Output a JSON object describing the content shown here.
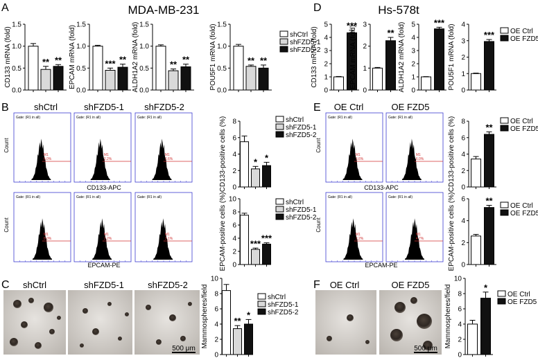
{
  "panels": {
    "A": {
      "letter": "A",
      "title": "MDA-MB-231"
    },
    "B": {
      "letter": "B"
    },
    "C": {
      "letter": "C"
    },
    "D": {
      "letter": "D",
      "title": "Hs-578t"
    },
    "E": {
      "letter": "E"
    },
    "F": {
      "letter": "F"
    }
  },
  "colors": {
    "ctrl": "#ffffff",
    "sh1": "#d9d9d9",
    "sh2": "#111111",
    "oe": "#111111",
    "flow_frame": "#3a3ad0",
    "flow_gate": "#d03030"
  },
  "flow": {
    "gate_text": "Gate: (R1 in all)",
    "y_label": "Count",
    "marker": "M1",
    "B_headers": [
      "shCtrl",
      "shFZD5-1",
      "shFZD5-2"
    ],
    "E_headers": [
      "OE Ctrl",
      "OE FZD5"
    ],
    "B_top_xlabel": "CD133-APC",
    "B_bottom_xlabel": "EPCAM-PE",
    "E_top_xlabel": "CD133-APC",
    "E_bottom_xlabel": "EPCAM-PE",
    "B_top_pct": [
      "6.0%",
      "2.2%",
      "2.6%"
    ],
    "B_bottom_pct": [
      "8.0%",
      "2.2%",
      "3.1%"
    ],
    "E_top_pct": [
      "3.6%",
      "6.0%"
    ],
    "E_bottom_pct": [
      "2.2%",
      "4.7%"
    ]
  },
  "images": {
    "C_headers": [
      "shCtrl",
      "shFZD5-1",
      "shFZD5-2"
    ],
    "F_headers": [
      "OE Ctrl",
      "OE FZD5"
    ],
    "scale_bar": "500 μm"
  },
  "chart_data": [
    {
      "id": "A1",
      "type": "bar",
      "ylabel": "CD133 mRNA (fold)",
      "ylim": [
        0,
        1.5
      ],
      "yticks": [
        "0.0",
        "0.5",
        "1.0",
        "1.5"
      ],
      "values": [
        1.0,
        0.47,
        0.54
      ],
      "errors": [
        0.06,
        0.07,
        0.04
      ],
      "sig": [
        "",
        "**",
        "**"
      ],
      "colors": [
        "ctrl",
        "sh1",
        "sh2"
      ]
    },
    {
      "id": "A2",
      "type": "bar",
      "ylabel": "EPCAM mRNA (fold)",
      "ylim": [
        0,
        1.5
      ],
      "yticks": [
        "0.0",
        "0.5",
        "1.0",
        "1.5"
      ],
      "values": [
        1.0,
        0.45,
        0.52
      ],
      "errors": [
        0.02,
        0.05,
        0.07
      ],
      "sig": [
        "",
        "***",
        "**"
      ],
      "colors": [
        "ctrl",
        "sh1",
        "sh2"
      ]
    },
    {
      "id": "A3",
      "type": "bar",
      "ylabel": "ALDH1A2 mRNA (fold)",
      "ylim": [
        0,
        1.5
      ],
      "yticks": [
        "0.0",
        "0.5",
        "1.0",
        "1.5"
      ],
      "values": [
        1.0,
        0.44,
        0.53
      ],
      "errors": [
        0.03,
        0.04,
        0.06
      ],
      "sig": [
        "",
        "**",
        "**"
      ],
      "colors": [
        "ctrl",
        "sh1",
        "sh2"
      ]
    },
    {
      "id": "A4",
      "type": "bar",
      "ylabel": "POU5F1 mRNA (fold)",
      "ylim": [
        0,
        1.5
      ],
      "yticks": [
        "0.0",
        "0.5",
        "1.0",
        "1.5"
      ],
      "values": [
        1.0,
        0.54,
        0.5
      ],
      "errors": [
        0.04,
        0.03,
        0.07
      ],
      "sig": [
        "",
        "**",
        "**"
      ],
      "colors": [
        "ctrl",
        "sh1",
        "sh2"
      ],
      "legend": [
        "shCtrl",
        "shFZD5-1",
        "shFZD5-2"
      ]
    },
    {
      "id": "B1",
      "type": "bar",
      "ylabel": "CD133-positive cells (%)",
      "ylim": [
        0,
        8
      ],
      "yticks": [
        "0",
        "2",
        "4",
        "6",
        "8"
      ],
      "values": [
        5.5,
        2.2,
        2.6
      ],
      "errors": [
        0.7,
        0.3,
        0.4
      ],
      "sig": [
        "",
        "*",
        "*"
      ],
      "colors": [
        "ctrl",
        "sh1",
        "sh2"
      ],
      "legend": [
        "shCtrl",
        "shFZD5-1",
        "shFZD5-2"
      ]
    },
    {
      "id": "B2",
      "type": "bar",
      "ylabel": "EPCAM-positive cells (%)",
      "ylim": [
        0,
        10
      ],
      "yticks": [
        "0",
        "2",
        "4",
        "6",
        "8",
        "10"
      ],
      "values": [
        7.5,
        2.3,
        3.1
      ],
      "errors": [
        0.3,
        0.2,
        0.2
      ],
      "sig": [
        "",
        "***",
        "***"
      ],
      "colors": [
        "ctrl",
        "sh1",
        "sh2"
      ],
      "legend": [
        "shCtrl",
        "shFZD5-1",
        "shFZD5-2"
      ]
    },
    {
      "id": "C1",
      "type": "bar",
      "ylabel": "Mammospheres/field",
      "ylim": [
        0,
        10
      ],
      "yticks": [
        "0",
        "2",
        "4",
        "6",
        "8",
        "10"
      ],
      "values": [
        8.4,
        3.4,
        4.0
      ],
      "errors": [
        0.8,
        0.4,
        0.6
      ],
      "sig": [
        "",
        "**",
        "*"
      ],
      "colors": [
        "ctrl",
        "sh1",
        "sh2"
      ],
      "legend": [
        "shCtrl",
        "shFZD5-1",
        "shFZD5-2"
      ]
    },
    {
      "id": "D1",
      "type": "bar",
      "ylabel": "CD133 mRNA (fold)",
      "ylim": [
        0,
        5
      ],
      "yticks": [
        "0",
        "1",
        "2",
        "3",
        "4",
        "5"
      ],
      "values": [
        1.0,
        4.35
      ],
      "errors": [
        0.03,
        0.2
      ],
      "sig": [
        "",
        "***"
      ],
      "colors": [
        "ctrl",
        "oe"
      ]
    },
    {
      "id": "D2",
      "type": "bar",
      "ylabel": "EPCAM mRNA (fold)",
      "ylim": [
        0,
        3
      ],
      "yticks": [
        "0",
        "1",
        "2",
        "3"
      ],
      "values": [
        1.0,
        2.25
      ],
      "errors": [
        0.03,
        0.15
      ],
      "sig": [
        "",
        "**"
      ],
      "colors": [
        "ctrl",
        "oe"
      ]
    },
    {
      "id": "D3",
      "type": "bar",
      "ylabel": "ALDH1A2 mRNA (fold)",
      "ylim": [
        0,
        5
      ],
      "yticks": [
        "0",
        "1",
        "2",
        "3",
        "4",
        "5"
      ],
      "values": [
        1.0,
        4.65
      ],
      "errors": [
        0.02,
        0.12
      ],
      "sig": [
        "",
        "***"
      ],
      "colors": [
        "ctrl",
        "oe"
      ]
    },
    {
      "id": "D4",
      "type": "bar",
      "ylabel": "POU5F1 mRNA (fold)",
      "ylim": [
        0,
        4
      ],
      "yticks": [
        "0",
        "1",
        "2",
        "3",
        "4"
      ],
      "values": [
        1.0,
        2.95
      ],
      "errors": [
        0.03,
        0.12
      ],
      "sig": [
        "",
        "***"
      ],
      "colors": [
        "ctrl",
        "oe"
      ],
      "legend": [
        "OE Ctrl",
        "OE FZD5"
      ]
    },
    {
      "id": "E1",
      "type": "bar",
      "ylabel": "CD133-positive cells (%)",
      "ylim": [
        0,
        8
      ],
      "yticks": [
        "0",
        "2",
        "4",
        "6",
        "8"
      ],
      "values": [
        3.4,
        6.4
      ],
      "errors": [
        0.3,
        0.3
      ],
      "sig": [
        "",
        "**"
      ],
      "colors": [
        "ctrl",
        "oe"
      ],
      "legend": [
        "OE Ctrl",
        "OE FZD5"
      ]
    },
    {
      "id": "E2",
      "type": "bar",
      "ylabel": "EPCAM-positive cells (%)",
      "ylim": [
        0,
        6
      ],
      "yticks": [
        "0",
        "2",
        "4",
        "6"
      ],
      "values": [
        2.6,
        5.2
      ],
      "errors": [
        0.15,
        0.2
      ],
      "sig": [
        "",
        "**"
      ],
      "colors": [
        "ctrl",
        "oe"
      ],
      "legend": [
        "OE Ctrl",
        "OE FZD5"
      ]
    },
    {
      "id": "F1",
      "type": "bar",
      "ylabel": "Mammospheres/field",
      "ylim": [
        0,
        10
      ],
      "yticks": [
        "0",
        "2",
        "4",
        "6",
        "8",
        "10"
      ],
      "values": [
        4.0,
        7.4
      ],
      "errors": [
        0.5,
        0.8
      ],
      "sig": [
        "",
        "*"
      ],
      "colors": [
        "ctrl",
        "oe"
      ],
      "legend": [
        "OE Ctrl",
        "OE FZD5"
      ]
    }
  ]
}
